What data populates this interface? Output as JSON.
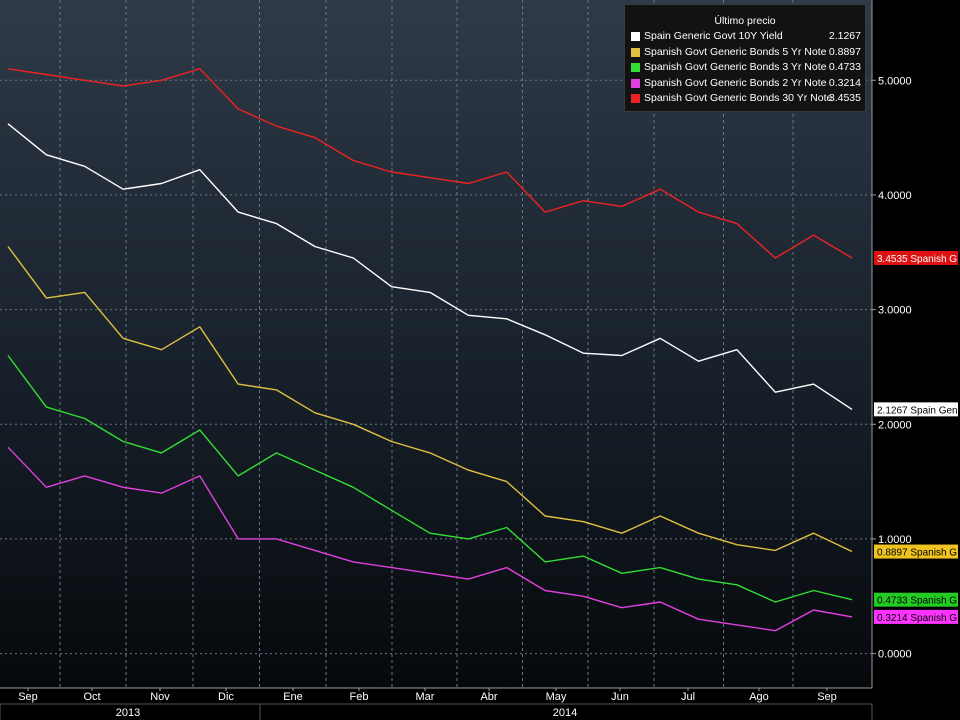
{
  "chart_data": {
    "type": "line",
    "x_labels": [
      "Sep",
      "Oct",
      "Nov",
      "Dic",
      "Ene",
      "Feb",
      "Mar",
      "Abr",
      "May",
      "Jun",
      "Jul",
      "Ago",
      "Sep"
    ],
    "years": [
      "2013",
      "2014"
    ],
    "y_ticks": [
      "0.0000",
      "1.0000",
      "2.0000",
      "3.0000",
      "4.0000",
      "5.0000"
    ],
    "ylim": [
      -0.3,
      5.7
    ],
    "grid": true,
    "legend": {
      "title": "Último precio",
      "position": "top-right"
    },
    "series": [
      {
        "name": "Spain Generic Govt 10Y Yield",
        "last": "2.1267",
        "tag": "2.1267 Spain Gen",
        "color": "#ffffff",
        "tag_bg": "#ffffff",
        "tag_fg": "#000000",
        "values": [
          4.62,
          4.35,
          4.25,
          4.05,
          4.1,
          4.22,
          3.85,
          3.75,
          3.55,
          3.45,
          3.2,
          3.15,
          2.95,
          2.92,
          2.78,
          2.62,
          2.6,
          2.75,
          2.55,
          2.65,
          2.28,
          2.35,
          2.13
        ]
      },
      {
        "name": "Spanish Govt Generic Bonds 5 Yr Note",
        "last": "0.8897",
        "tag": "0.8897 Spanish G",
        "color": "#e0c040",
        "tag_bg": "#f0c420",
        "tag_fg": "#000000",
        "values": [
          3.55,
          3.1,
          3.15,
          2.75,
          2.65,
          2.85,
          2.35,
          2.3,
          2.1,
          2.0,
          1.85,
          1.75,
          1.6,
          1.5,
          1.2,
          1.15,
          1.05,
          1.2,
          1.05,
          0.95,
          0.9,
          1.05,
          0.89
        ]
      },
      {
        "name": "Spanish Govt Generic Bonds 3 Yr Note",
        "last": "0.4733",
        "tag": "0.4733 Spanish G",
        "color": "#33dd33",
        "tag_bg": "#22cc22",
        "tag_fg": "#000000",
        "values": [
          2.6,
          2.15,
          2.05,
          1.85,
          1.75,
          1.95,
          1.55,
          1.75,
          1.6,
          1.45,
          1.25,
          1.05,
          1.0,
          1.1,
          0.8,
          0.85,
          0.7,
          0.75,
          0.65,
          0.6,
          0.45,
          0.55,
          0.47
        ]
      },
      {
        "name": "Spanish Govt Generic Bonds 2 Yr Note",
        "last": "0.3214",
        "tag": "0.3214 Spanish G",
        "color": "#e040e0",
        "tag_bg": "#ff33ff",
        "tag_fg": "#000000",
        "values": [
          1.8,
          1.45,
          1.55,
          1.45,
          1.4,
          1.55,
          1.0,
          1.0,
          0.9,
          0.8,
          0.75,
          0.7,
          0.65,
          0.75,
          0.55,
          0.5,
          0.4,
          0.45,
          0.3,
          0.25,
          0.2,
          0.38,
          0.32
        ]
      },
      {
        "name": "Spanish Govt Generic Bonds 30 Yr Note",
        "last": "3.4535",
        "tag": "3.4535 Spanish G",
        "color": "#ee2222",
        "tag_bg": "#dd1111",
        "tag_fg": "#ffffff",
        "values": [
          5.1,
          5.05,
          5.0,
          4.95,
          5.0,
          5.1,
          4.75,
          4.6,
          4.5,
          4.3,
          4.2,
          4.15,
          4.1,
          4.2,
          3.85,
          3.95,
          3.9,
          4.05,
          3.85,
          3.75,
          3.45,
          3.65,
          3.45
        ]
      }
    ]
  }
}
